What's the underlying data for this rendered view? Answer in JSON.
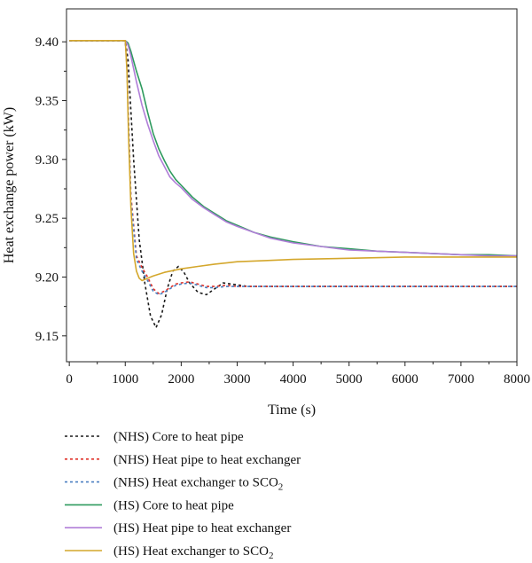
{
  "chart_data": {
    "type": "line",
    "xlabel": "Time (s)",
    "ylabel": "Heat exchange power (kW)",
    "xlim": [
      -50,
      8000
    ],
    "ylim": [
      9.128,
      9.428
    ],
    "x_ticks": [
      0,
      1000,
      2000,
      3000,
      4000,
      5000,
      6000,
      7000,
      8000
    ],
    "y_ticks": [
      9.15,
      9.2,
      9.25,
      9.3,
      9.35,
      9.4
    ],
    "y_tick_labels": [
      "9.15",
      "9.20",
      "9.25",
      "9.30",
      "9.35",
      "9.40"
    ],
    "legend_position": "below",
    "series": [
      {
        "name": "(NHS) Core to heat pipe",
        "legend_main": "(NHS) Core to heat pipe",
        "legend_sub": "",
        "color": "#1a1a1a",
        "dash": "3,3",
        "x": [
          0,
          1000,
          1050,
          1150,
          1250,
          1350,
          1450,
          1550,
          1650,
          1750,
          1850,
          1950,
          2050,
          2150,
          2300,
          2450,
          2600,
          2750,
          2900,
          3200,
          4000,
          5000,
          6000,
          7000,
          8000
        ],
        "y": [
          9.401,
          9.401,
          9.385,
          9.3,
          9.232,
          9.195,
          9.167,
          9.157,
          9.168,
          9.19,
          9.205,
          9.209,
          9.204,
          9.195,
          9.187,
          9.185,
          9.19,
          9.195,
          9.194,
          9.192,
          9.192,
          9.192,
          9.192,
          9.192,
          9.192
        ]
      },
      {
        "name": "(NHS) Heat pipe to heat exchanger",
        "legend_main": "(NHS) Heat pipe to heat exchanger",
        "legend_sub": "",
        "color": "#e0332a",
        "dash": "3,3",
        "x": [
          0,
          1000,
          1030,
          1100,
          1200,
          1300,
          1400,
          1500,
          1600,
          1700,
          1800,
          1900,
          2000,
          2150,
          2300,
          2450,
          2600,
          2800,
          3000,
          4000,
          5000,
          6000,
          7000,
          8000
        ],
        "y": [
          9.401,
          9.401,
          9.38,
          9.27,
          9.218,
          9.208,
          9.2,
          9.19,
          9.186,
          9.188,
          9.191,
          9.194,
          9.195,
          9.196,
          9.194,
          9.192,
          9.192,
          9.193,
          9.192,
          9.192,
          9.192,
          9.192,
          9.192,
          9.192
        ]
      },
      {
        "name": "(NHS) Heat exchanger to SCO₂",
        "legend_main": "(NHS) Heat exchanger to SCO",
        "legend_sub": "2",
        "color": "#4a7fc1",
        "dash": "3,3",
        "x": [
          0,
          1000,
          1030,
          1100,
          1200,
          1300,
          1400,
          1500,
          1600,
          1700,
          1800,
          1900,
          2000,
          2150,
          2300,
          2450,
          2600,
          2800,
          3000,
          4000,
          5000,
          6000,
          7000,
          8000
        ],
        "y": [
          9.401,
          9.401,
          9.378,
          9.266,
          9.215,
          9.205,
          9.197,
          9.188,
          9.185,
          9.187,
          9.19,
          9.193,
          9.194,
          9.195,
          9.193,
          9.191,
          9.191,
          9.192,
          9.192,
          9.192,
          9.192,
          9.192,
          9.192,
          9.192
        ]
      },
      {
        "name": "(HS) Core to heat pipe",
        "legend_main": "(HS) Core to heat pipe",
        "legend_sub": "",
        "color": "#2e9a5e",
        "dash": "",
        "x": [
          0,
          1000,
          1050,
          1100,
          1200,
          1300,
          1400,
          1500,
          1600,
          1700,
          1800,
          1900,
          2000,
          2200,
          2400,
          2600,
          2800,
          3000,
          3300,
          3600,
          4000,
          4500,
          5000,
          5500,
          6000,
          6500,
          7000,
          7500,
          8000
        ],
        "y": [
          9.401,
          9.401,
          9.399,
          9.392,
          9.375,
          9.36,
          9.34,
          9.322,
          9.309,
          9.299,
          9.29,
          9.283,
          9.278,
          9.268,
          9.26,
          9.254,
          9.248,
          9.244,
          9.238,
          9.234,
          9.23,
          9.226,
          9.224,
          9.222,
          9.221,
          9.22,
          9.219,
          9.219,
          9.218
        ]
      },
      {
        "name": "(HS) Heat pipe to heat exchanger",
        "legend_main": "(HS) Heat pipe to heat exchanger",
        "legend_sub": "",
        "color": "#b07ed8",
        "dash": "",
        "x": [
          0,
          1000,
          1050,
          1100,
          1200,
          1300,
          1400,
          1500,
          1600,
          1700,
          1800,
          1900,
          2000,
          2200,
          2400,
          2600,
          2800,
          3000,
          3300,
          3600,
          4000,
          4500,
          5000,
          5500,
          6000,
          6500,
          7000,
          7500,
          8000
        ],
        "y": [
          9.401,
          9.401,
          9.397,
          9.388,
          9.366,
          9.346,
          9.33,
          9.316,
          9.303,
          9.294,
          9.285,
          9.28,
          9.276,
          9.266,
          9.259,
          9.253,
          9.247,
          9.243,
          9.238,
          9.233,
          9.229,
          9.226,
          9.223,
          9.222,
          9.221,
          9.22,
          9.219,
          9.218,
          9.218
        ]
      },
      {
        "name": "(HS) Heat exchanger to SCO₂",
        "legend_main": "(HS) Heat exchanger to SCO",
        "legend_sub": "2",
        "color": "#d4a72c",
        "dash": "",
        "x": [
          0,
          1000,
          1030,
          1060,
          1100,
          1150,
          1200,
          1250,
          1300,
          1400,
          1500,
          1700,
          2000,
          2300,
          2600,
          3000,
          3500,
          4000,
          5000,
          6000,
          7000,
          8000
        ],
        "y": [
          9.401,
          9.401,
          9.375,
          9.32,
          9.26,
          9.22,
          9.205,
          9.199,
          9.197,
          9.199,
          9.201,
          9.204,
          9.207,
          9.209,
          9.211,
          9.213,
          9.214,
          9.215,
          9.216,
          9.217,
          9.217,
          9.217
        ]
      }
    ]
  }
}
